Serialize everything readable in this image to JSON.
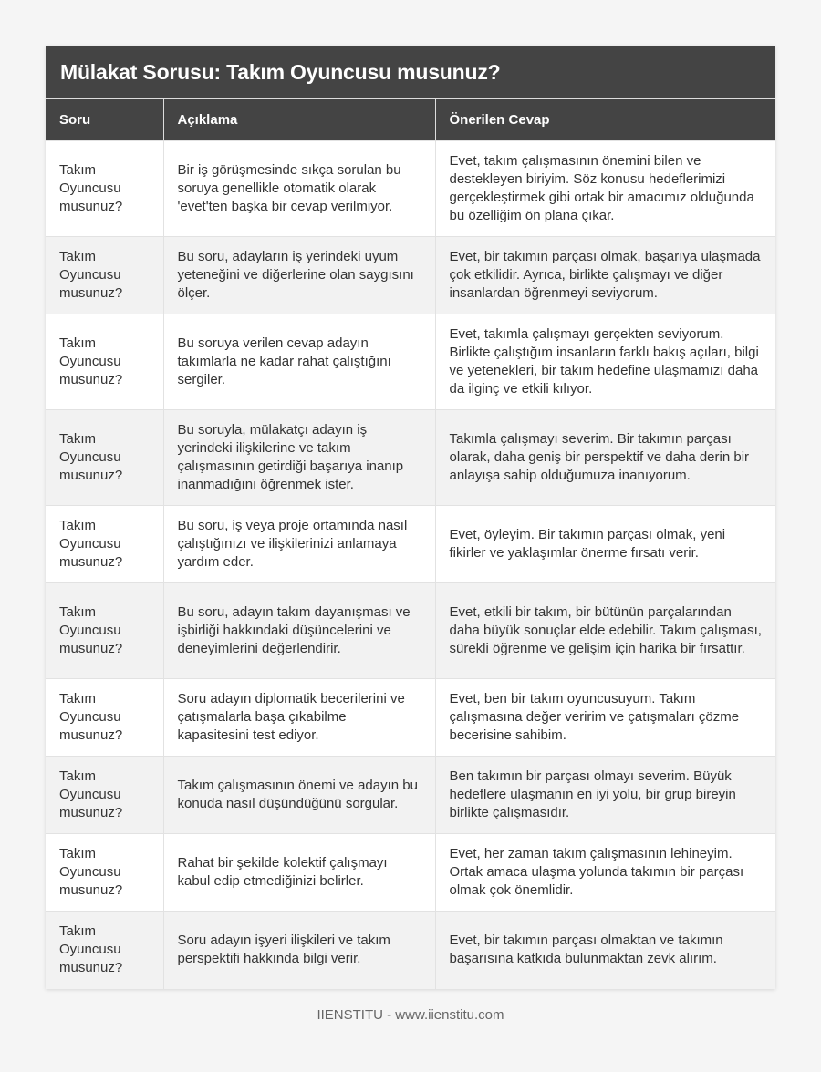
{
  "title": "Mülakat Sorusu: Takım Oyuncusu musunuz?",
  "columns": [
    "Soru",
    "Açıklama",
    "Önerilen Cevap"
  ],
  "rows": [
    {
      "q": "Takım Oyuncusu musunuz?",
      "d": "Bir iş görüşmesinde sıkça sorulan bu soruya genellikle otomatik olarak 'evet'ten başka bir cevap verilmiyor.",
      "a": "Evet, takım çalışmasının önemini bilen ve destekleyen biriyim. Söz konusu hedeflerimizi gerçekleştirmek gibi ortak bir amacımız olduğunda bu özelliğim ön plana çıkar."
    },
    {
      "q": "Takım Oyuncusu musunuz?",
      "d": "Bu soru, adayların iş yerindeki uyum yeteneğini ve diğerlerine olan saygısını ölçer.",
      "a": "Evet, bir takımın parçası olmak, başarıya ulaşmada çok etkilidir. Ayrıca, birlikte çalışmayı ve diğer insanlardan öğrenmeyi seviyorum."
    },
    {
      "q": "Takım Oyuncusu musunuz?",
      "d": "Bu soruya verilen cevap adayın takımlarla ne kadar rahat çalıştığını sergiler.",
      "a": "Evet, takımla çalışmayı gerçekten seviyorum. Birlikte çalıştığım insanların farklı bakış açıları, bilgi ve yetenekleri, bir takım hedefine ulaşmamızı daha da ilginç ve etkili kılıyor."
    },
    {
      "q": "Takım Oyuncusu musunuz?",
      "d": "Bu soruyla, mülakatçı adayın iş yerindeki ilişkilerine ve takım çalışmasının getirdiği başarıya inanıp inanmadığını öğrenmek ister.",
      "a": "Takımla çalışmayı severim. Bir takımın parçası olarak, daha geniş bir perspektif ve daha derin bir anlayışa sahip olduğumuza inanıyorum."
    },
    {
      "q": "Takım Oyuncusu musunuz?",
      "d": "Bu soru, iş veya proje ortamında nasıl çalıştığınızı ve ilişkilerinizi anlamaya yardım eder.",
      "a": "Evet, öyleyim. Bir takımın parçası olmak, yeni fikirler ve yaklaşımlar önerme fırsatı verir."
    },
    {
      "q": "Takım Oyuncusu musunuz?",
      "d": "Bu soru, adayın takım dayanışması ve işbirliği hakkındaki düşüncelerini ve deneyimlerini değerlendirir.",
      "a": "Evet, etkili bir takım, bir bütünün parçalarından daha büyük sonuçlar elde edebilir. Takım çalışması, sürekli öğrenme ve gelişim için harika bir fırsattır."
    },
    {
      "q": "Takım Oyuncusu musunuz?",
      "d": "Soru adayın diplomatik becerilerini ve çatışmalarla başa çıkabilme kapasitesini test ediyor.",
      "a": "Evet, ben bir takım oyuncusuyum. Takım çalışmasına değer veririm ve çatışmaları çözme becerisine sahibim."
    },
    {
      "q": "Takım Oyuncusu musunuz?",
      "d": "Takım çalışmasının önemi ve adayın bu konuda nasıl düşündüğünü sorgular.",
      "a": "Ben takımın bir parçası olmayı severim. Büyük hedeflere ulaşmanın en iyi yolu, bir grup bireyin birlikte çalışmasıdır."
    },
    {
      "q": "Takım Oyuncusu musunuz?",
      "d": "Rahat bir şekilde kolektif çalışmayı kabul edip etmediğinizi belirler.",
      "a": "Evet, her zaman takım çalışmasının lehineyim. Ortak amaca ulaşma yolunda takımın bir parçası olmak çok önemlidir."
    },
    {
      "q": "Takım Oyuncusu musunuz?",
      "d": "Soru adayın işyeri ilişkileri ve takım perspektifi hakkında bilgi verir.",
      "a": "Evet, bir takımın parçası olmaktan ve takımın başarısına katkıda bulunmaktan zevk alırım."
    }
  ],
  "footer": "IIENSTITU - www.iienstitu.com"
}
